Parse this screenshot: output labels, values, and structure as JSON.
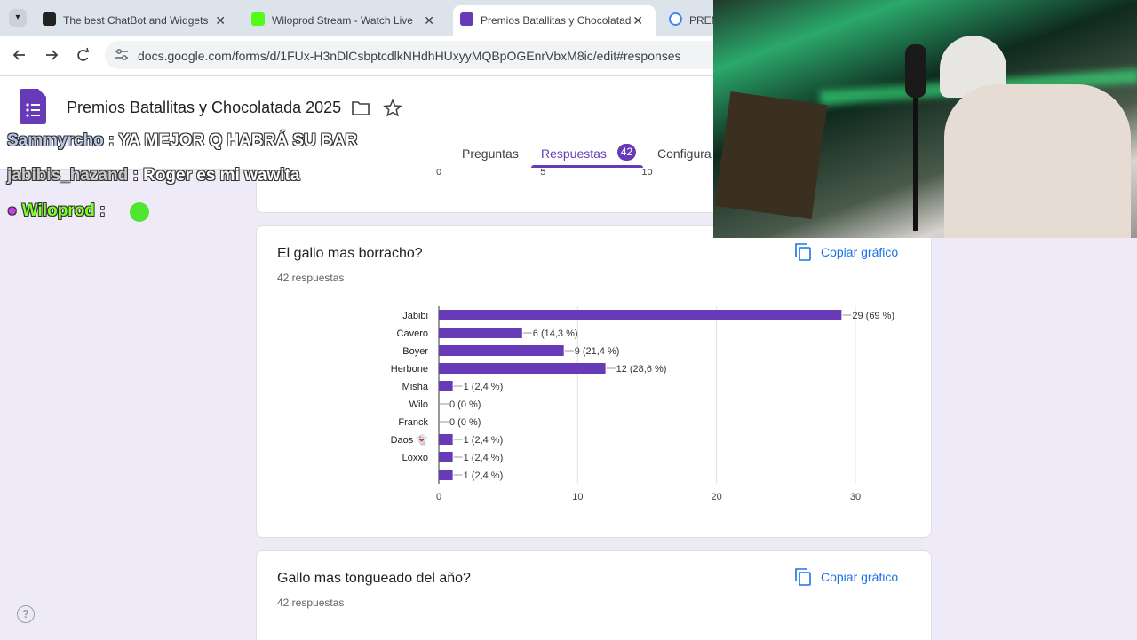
{
  "browser": {
    "tabs": [
      "The best ChatBot and Widgets",
      "Wiloprod Stream - Watch Live",
      "Premios Batallitas y Chocolatad",
      "PREM"
    ],
    "url": "docs.google.com/forms/d/1FUx-H3nDlCsbptcdlkNHdhHUxyyMQBpOGEnrVbxM8ic/edit#responses"
  },
  "form": {
    "title": "Premios Batallitas y Chocolatada 2025",
    "nav": [
      "Preguntas",
      "Respuestas",
      "Configura"
    ],
    "response_count": 42,
    "help": "?"
  },
  "chat": {
    "separator": ":",
    "messages": [
      {
        "user": "Sammyrcho",
        "message": "YA MEJOR Q HABRÁ SU BAR"
      },
      {
        "user": "jabibis_hazand",
        "message": "Roger es mi wawita"
      },
      {
        "user": "Wiloprod"
      }
    ]
  },
  "previous_card": {
    "xticks": [
      0,
      5,
      10
    ]
  },
  "cards": [
    {
      "title": "El gallo mas borracho?",
      "responses": "42 respuestas",
      "copy": "Copiar gráfico",
      "chart_data": {
        "type": "bar",
        "orientation": "horizontal",
        "color": "#673ab7",
        "categories": [
          "Jabibi",
          "Cavero",
          "Boyer",
          "Herbone",
          "Misha",
          "Wilo",
          "Franck",
          "Daos 👻",
          "Loxxo",
          null
        ],
        "values": [
          29,
          6,
          9,
          12,
          1,
          0,
          0,
          1,
          1,
          1
        ],
        "value_labels": [
          "29 (69 %)",
          "6 (14,3 %)",
          "9 (21,4 %)",
          "12 (28,6 %)",
          "1 (2,4 %)",
          "0 (0 %)",
          "0 (0 %)",
          "1 (2,4 %)",
          "1 (2,4 %)",
          "1 (2,4 %)"
        ],
        "xlim": [
          0,
          30
        ],
        "xticks": [
          0,
          10,
          20,
          30
        ],
        "grid": true
      }
    },
    {
      "title": "Gallo mas tongueado del año?",
      "responses": "42 respuestas",
      "copy": "Copiar gráfico"
    }
  ]
}
